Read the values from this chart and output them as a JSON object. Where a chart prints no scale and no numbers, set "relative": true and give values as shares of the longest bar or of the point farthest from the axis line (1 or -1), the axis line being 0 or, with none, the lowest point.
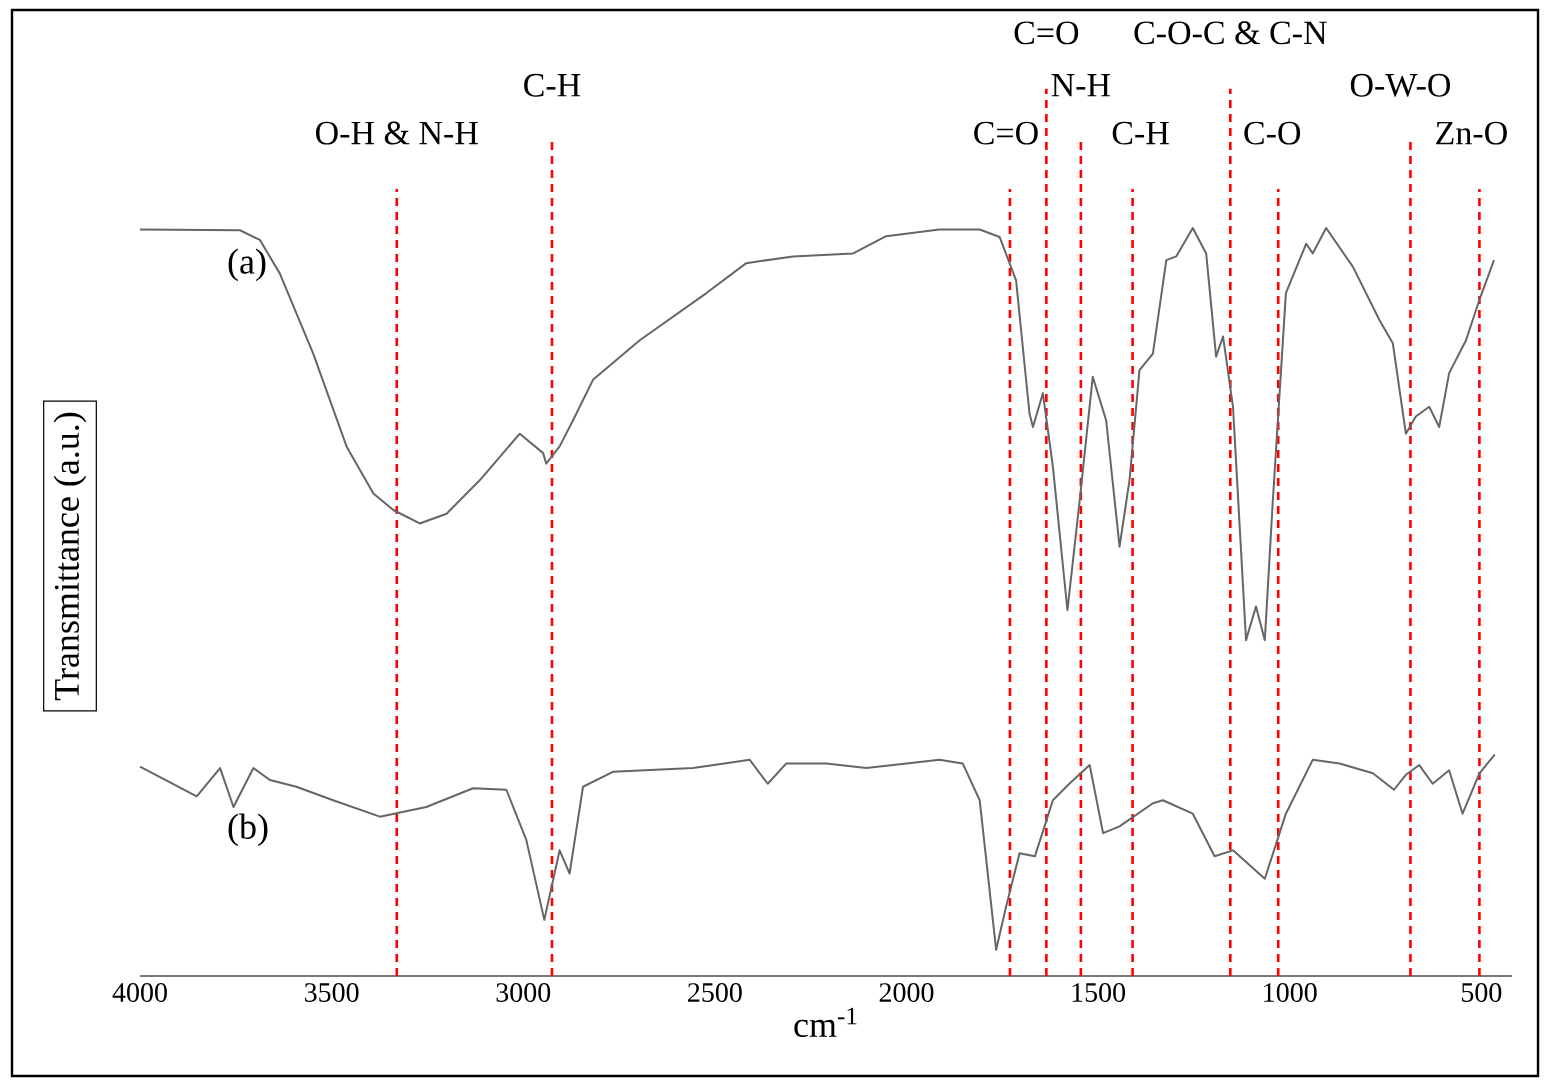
{
  "chart_data": {
    "type": "line",
    "relative": true,
    "xlabel": "cm$^{-1}$",
    "ylabel": "Transmittance (a.u.)",
    "xlim": [
      4000,
      420
    ],
    "xticks": [
      4000,
      3500,
      3000,
      2500,
      2000,
      1500,
      1000,
      500
    ],
    "line_style": "solid",
    "series": [
      {
        "name": "(a)",
        "color": "#666666",
        "x": [
          4000,
          3739,
          3687,
          3635,
          3548,
          3461,
          3391,
          3339,
          3270,
          3200,
          3113,
          3009,
          2948,
          2940,
          2905,
          2870,
          2818,
          2696,
          2522,
          2418,
          2296,
          2139,
          2053,
          1914,
          1809,
          1757,
          1714,
          1679,
          1670,
          1644,
          1618,
          1580,
          1548,
          1514,
          1479,
          1444,
          1418,
          1392,
          1357,
          1322,
          1296,
          1253,
          1218,
          1192,
          1174,
          1148,
          1114,
          1088,
          1065,
          1044,
          1010,
          957,
          940,
          905,
          835,
          766,
          731,
          697,
          671,
          636,
          610,
          584,
          540,
          505,
          467
        ],
        "values": [
          0.998,
          0.997,
          0.984,
          0.939,
          0.832,
          0.708,
          0.645,
          0.623,
          0.605,
          0.618,
          0.663,
          0.725,
          0.699,
          0.685,
          0.708,
          0.743,
          0.797,
          0.85,
          0.913,
          0.953,
          0.962,
          0.966,
          0.989,
          0.998,
          0.998,
          0.988,
          0.93,
          0.752,
          0.734,
          0.779,
          0.681,
          0.489,
          0.636,
          0.801,
          0.743,
          0.574,
          0.663,
          0.81,
          0.832,
          0.957,
          0.962,
          1.0,
          0.966,
          0.828,
          0.855,
          0.761,
          0.449,
          0.494,
          0.449,
          0.636,
          0.913,
          0.979,
          0.966,
          1.0,
          0.948,
          0.877,
          0.846,
          0.725,
          0.748,
          0.761,
          0.734,
          0.806,
          0.85,
          0.904,
          0.957
        ]
      },
      {
        "name": "(b)",
        "color": "#666666",
        "x": [
          4000,
          3852,
          3791,
          3756,
          3704,
          3661,
          3592,
          3496,
          3374,
          3253,
          3131,
          3044,
          2992,
          2945,
          2905,
          2879,
          2844,
          2766,
          2557,
          2409,
          2362,
          2314,
          2209,
          2105,
          1914,
          1853,
          1809,
          1766,
          1740,
          1705,
          1665,
          1618,
          1575,
          1522,
          1487,
          1444,
          1357,
          1331,
          1253,
          1196,
          1148,
          1065,
          1010,
          940,
          870,
          783,
          728,
          697,
          662,
          627,
          584,
          549,
          505,
          465
        ],
        "values": [
          0.28,
          0.24,
          0.278,
          0.226,
          0.278,
          0.262,
          0.253,
          0.235,
          0.213,
          0.226,
          0.251,
          0.249,
          0.182,
          0.075,
          0.168,
          0.137,
          0.253,
          0.273,
          0.278,
          0.289,
          0.257,
          0.284,
          0.284,
          0.278,
          0.289,
          0.284,
          0.235,
          0.035,
          0.093,
          0.164,
          0.16,
          0.235,
          0.257,
          0.282,
          0.191,
          0.2,
          0.231,
          0.235,
          0.217,
          0.16,
          0.168,
          0.13,
          0.217,
          0.289,
          0.284,
          0.271,
          0.249,
          0.269,
          0.282,
          0.257,
          0.275,
          0.217,
          0.271,
          0.296
        ]
      }
    ],
    "ref_lines": [
      {
        "axis": "x",
        "value": 3330,
        "label": "O-H & N-H",
        "color": "#ff0000",
        "line_style": "dashed"
      },
      {
        "axis": "x",
        "value": 2925,
        "label": "C-H",
        "color": "#ff0000",
        "line_style": "dashed"
      },
      {
        "axis": "x",
        "value": 1730,
        "label": "C=O",
        "color": "#ff0000",
        "line_style": "dashed"
      },
      {
        "axis": "x",
        "value": 1635,
        "label": "C=O",
        "color": "#ff0000",
        "line_style": "dashed"
      },
      {
        "axis": "x",
        "value": 1545,
        "label": "N-H",
        "color": "#ff0000",
        "line_style": "dashed"
      },
      {
        "axis": "x",
        "value": 1410,
        "label": "C-H",
        "color": "#ff0000",
        "line_style": "dashed"
      },
      {
        "axis": "x",
        "value": 1155,
        "label": "C-O-C & C-N",
        "color": "#ff0000",
        "line_style": "dashed"
      },
      {
        "axis": "x",
        "value": 1030,
        "label": "C-O",
        "color": "#ff0000",
        "line_style": "dashed"
      },
      {
        "axis": "x",
        "value": 685,
        "label": "O-W-O",
        "color": "#ff0000",
        "line_style": "dashed"
      },
      {
        "axis": "x",
        "value": 505,
        "label": "Zn-O",
        "color": "#ff0000",
        "line_style": "dashed"
      }
    ]
  }
}
